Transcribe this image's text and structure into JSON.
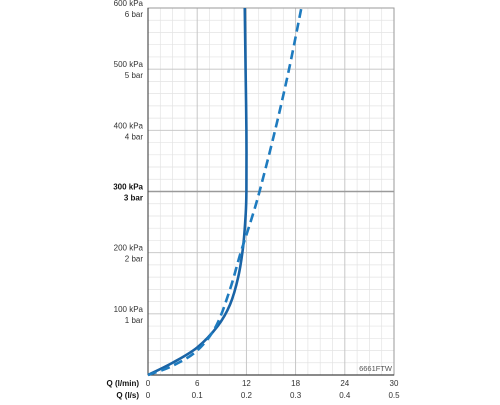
{
  "chart_data": {
    "type": "line",
    "title": "",
    "y_axis": {
      "range_kpa": [
        0,
        600
      ],
      "ticks": [
        {
          "value": 100,
          "kpa_label": "100 kPa",
          "bar_label": "1 bar",
          "bold": false
        },
        {
          "value": 200,
          "kpa_label": "200 kPa",
          "bar_label": "2 bar",
          "bold": false
        },
        {
          "value": 300,
          "kpa_label": "300 kPa",
          "bar_label": "3 bar",
          "bold": true
        },
        {
          "value": 400,
          "kpa_label": "400 kPa",
          "bar_label": "4 bar",
          "bold": false
        },
        {
          "value": 500,
          "kpa_label": "500 kPa",
          "bar_label": "5 bar",
          "bold": false
        },
        {
          "value": 600,
          "kpa_label": "600 kPa",
          "bar_label": "6 bar",
          "bold": false
        }
      ]
    },
    "x_axis": {
      "range_lmin": [
        0,
        30
      ],
      "primary_label": "Q (l/min)",
      "secondary_label": "Q (l/s)",
      "ticks_lmin": [
        "0",
        "6",
        "12",
        "18",
        "24",
        "30"
      ],
      "ticks_ls": [
        "0",
        "0.1",
        "0.2",
        "0.3",
        "0.4",
        "0.5"
      ]
    },
    "grid": true,
    "code_label": "6661FTW",
    "series": [
      {
        "style": "solid",
        "color": "#1a64a6",
        "points": [
          [
            0,
            0
          ],
          [
            3,
            20
          ],
          [
            6,
            45
          ],
          [
            8.5,
            80
          ],
          [
            10,
            115
          ],
          [
            11,
            160
          ],
          [
            11.6,
            210
          ],
          [
            11.9,
            260
          ],
          [
            12,
            300
          ],
          [
            12,
            400
          ],
          [
            11.9,
            500
          ],
          [
            11.8,
            600
          ]
        ]
      },
      {
        "style": "dashed",
        "color": "#1e7bbf",
        "points": [
          [
            0,
            0
          ],
          [
            3,
            15
          ],
          [
            6,
            40
          ],
          [
            8.3,
            80
          ],
          [
            10,
            140
          ],
          [
            11.3,
            200
          ],
          [
            12.5,
            250
          ],
          [
            13.6,
            300
          ],
          [
            15.5,
            400
          ],
          [
            17.2,
            500
          ],
          [
            18.7,
            600
          ]
        ]
      }
    ]
  }
}
